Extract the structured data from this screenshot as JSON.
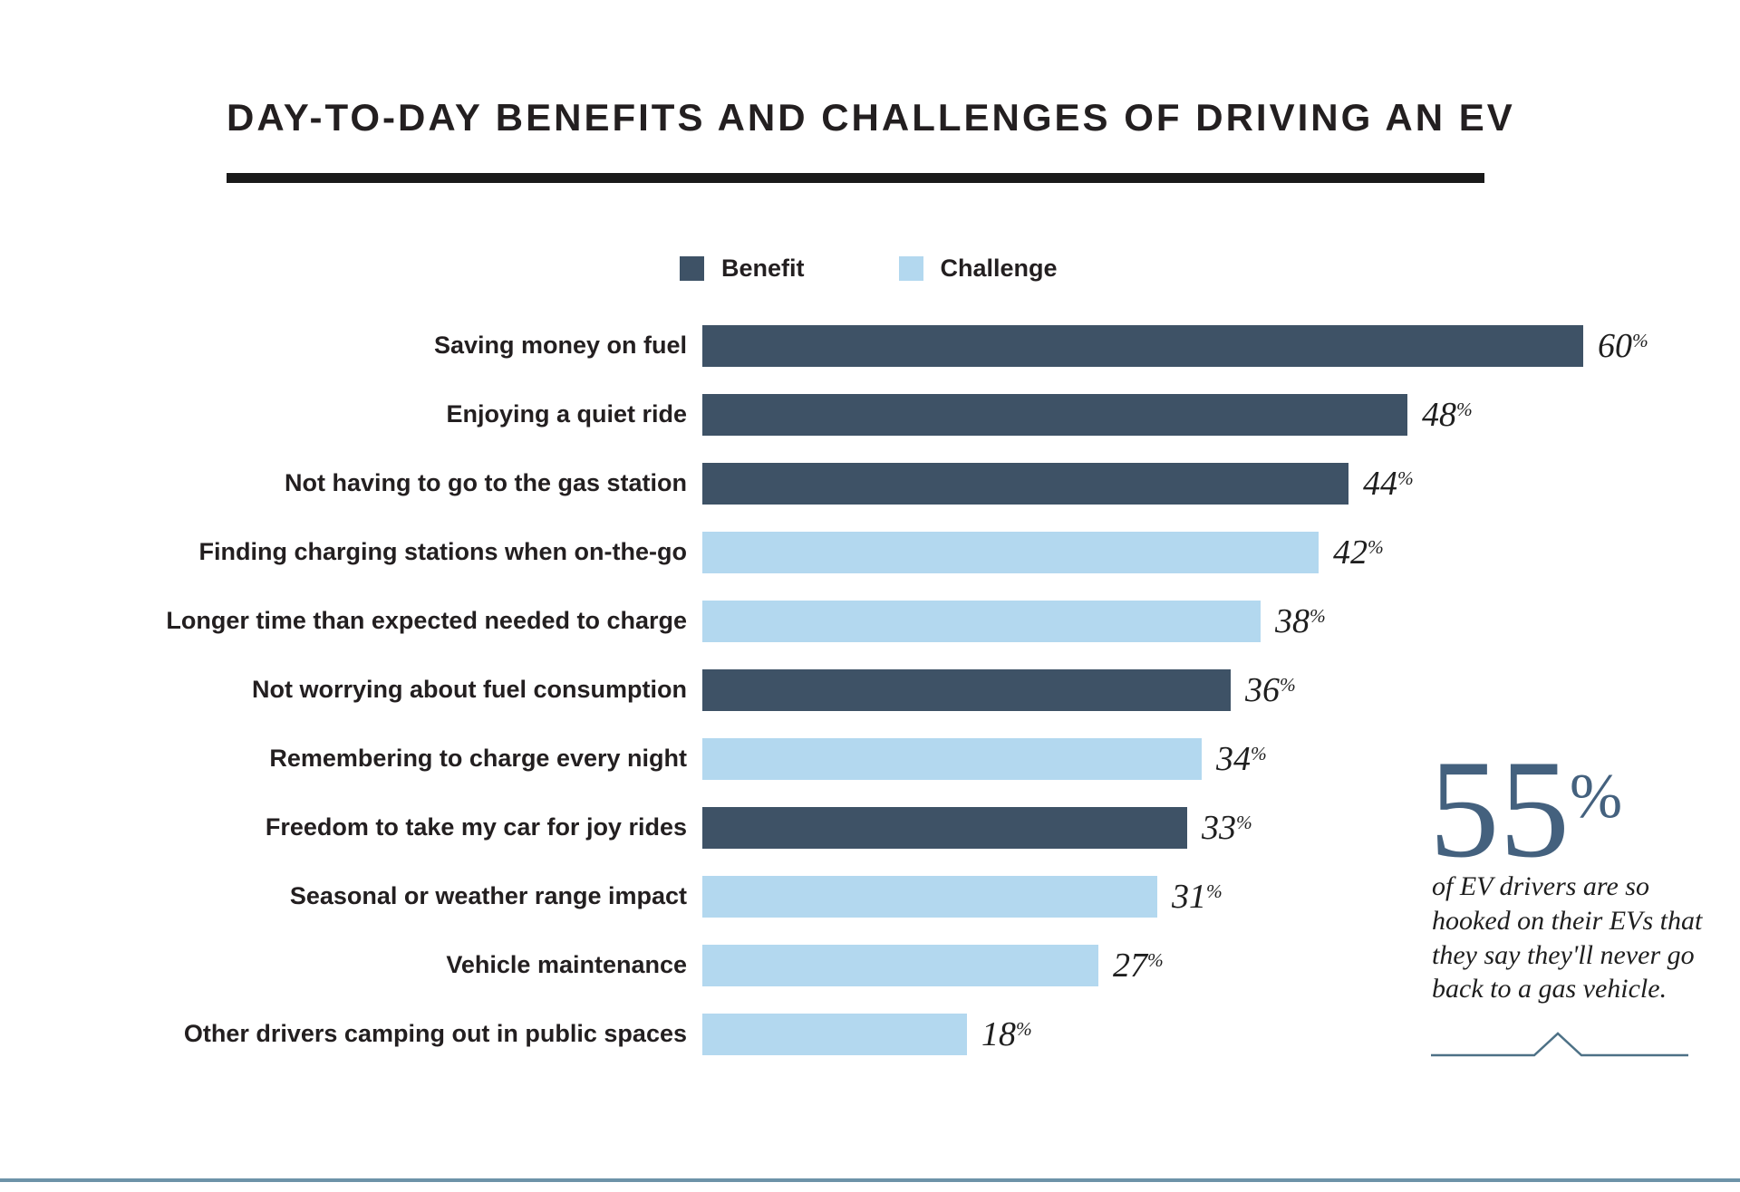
{
  "header": {
    "title": "DAY-TO-DAY BENEFITS AND CHALLENGES OF DRIVING AN EV"
  },
  "legend": {
    "items": [
      {
        "label": "Benefit",
        "series": "benefit"
      },
      {
        "label": "Challenge",
        "series": "challenge"
      }
    ]
  },
  "colors": {
    "benefit": "#3e5266",
    "challenge": "#b3d8ef",
    "title_text": "#231f20",
    "underline": "#1a1a1a",
    "value_text": "#1f1f1f",
    "callout_number": "#44617e",
    "callout_text": "#1e1e1e",
    "caret_line": "#4d7186",
    "footer_rule": "#6d93a8"
  },
  "chart_data": {
    "type": "bar",
    "orientation": "horizontal",
    "title": "DAY-TO-DAY BENEFITS AND CHALLENGES OF DRIVING AN EV",
    "unit": "%",
    "xlim": [
      0,
      60
    ],
    "grid": false,
    "legend_position": "top-center",
    "legend_entries": [
      "Benefit",
      "Challenge"
    ],
    "bars": [
      {
        "label": "Saving money on fuel",
        "value": 60,
        "series": "Benefit"
      },
      {
        "label": "Enjoying a quiet ride",
        "value": 48,
        "series": "Benefit"
      },
      {
        "label": "Not having to go to the gas station",
        "value": 44,
        "series": "Benefit"
      },
      {
        "label": "Finding charging stations when on-the-go",
        "value": 42,
        "series": "Challenge"
      },
      {
        "label": "Longer time than expected needed to charge",
        "value": 38,
        "series": "Challenge"
      },
      {
        "label": "Not worrying about fuel consumption",
        "value": 36,
        "series": "Benefit"
      },
      {
        "label": "Remembering to charge every night",
        "value": 34,
        "series": "Challenge"
      },
      {
        "label": "Freedom to take my car for joy rides",
        "value": 33,
        "series": "Benefit"
      },
      {
        "label": "Seasonal or weather range impact",
        "value": 31,
        "series": "Challenge"
      },
      {
        "label": "Vehicle maintenance",
        "value": 27,
        "series": "Challenge"
      },
      {
        "label": "Other drivers camping out in public spaces",
        "value": 18,
        "series": "Challenge"
      }
    ]
  },
  "callout": {
    "number": "55",
    "unit": "%",
    "text": "of EV drivers are so hooked on their EVs that they say they'll never go back to a gas vehicle."
  }
}
